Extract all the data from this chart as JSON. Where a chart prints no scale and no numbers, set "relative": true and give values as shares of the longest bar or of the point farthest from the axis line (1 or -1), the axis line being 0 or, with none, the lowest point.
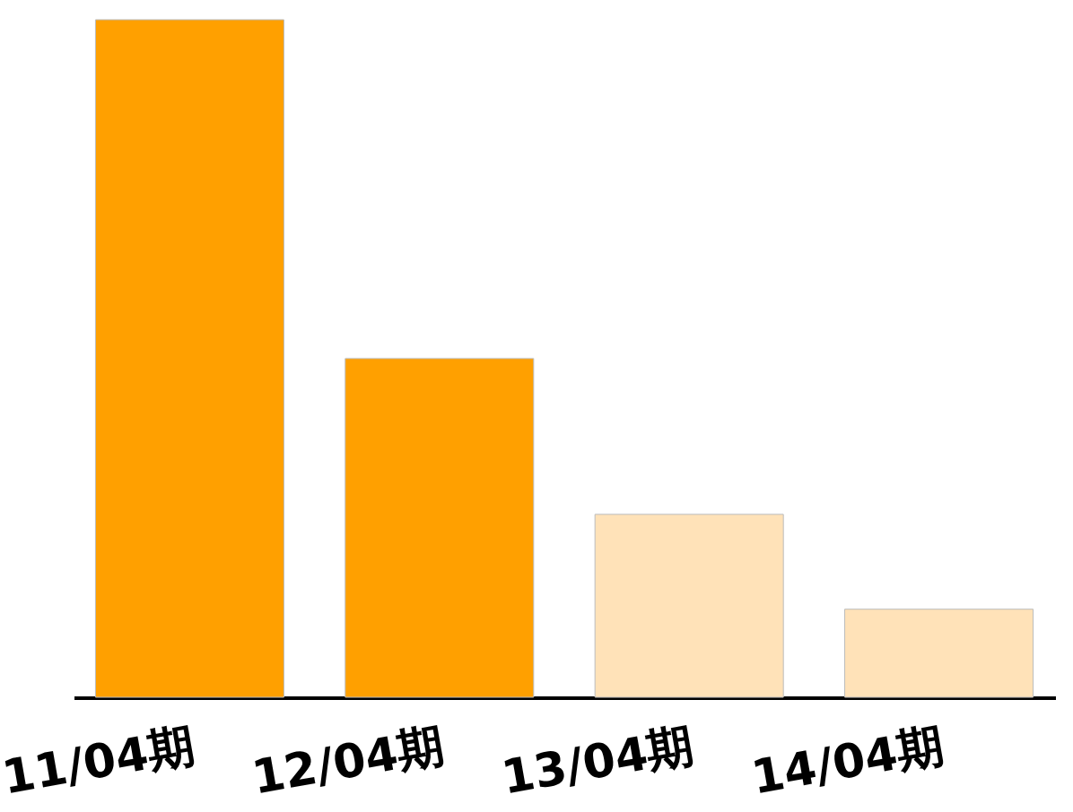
{
  "chart_data": {
    "type": "bar",
    "relative": true,
    "categories": [
      "11/04期",
      "12/04期",
      "13/04期",
      "14/04期"
    ],
    "values": [
      1,
      0.5,
      0.27,
      0.13
    ],
    "colors": [
      "#ffa000",
      "#ffa000",
      "#ffe2b8",
      "#ffe2b8"
    ]
  }
}
